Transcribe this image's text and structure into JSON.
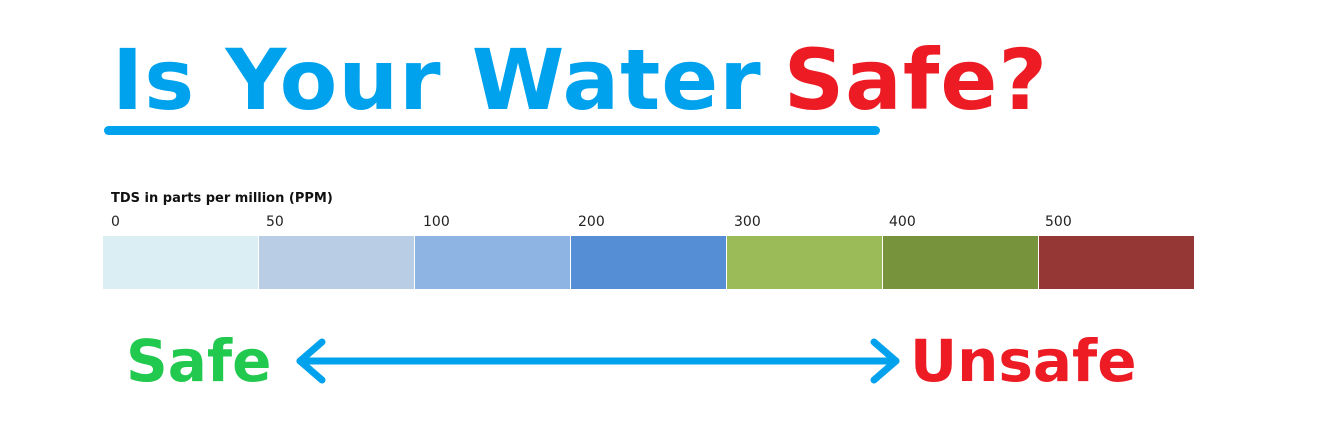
{
  "headline": {
    "part1": "Is Your Water",
    "part2": "Safe?",
    "part1_color": "#00a2ed",
    "part2_color": "#ed1c24",
    "underline_color": "#00a2ed"
  },
  "scale": {
    "caption": "TDS in parts per million (PPM)",
    "ticks": [
      "0",
      "50",
      "100",
      "200",
      "300",
      "400",
      "500"
    ],
    "segment_colors": [
      "#dbeef4",
      "#b9cde5",
      "#8eb4e3",
      "#558ed5",
      "#9bbb59",
      "#77933c",
      "#953735"
    ]
  },
  "range": {
    "safe_label": "Safe",
    "unsafe_label": "Unsafe",
    "safe_color": "#22c94f",
    "unsafe_color": "#ed1c24",
    "arrow_color": "#00a2ed",
    "arrow_icon": "double-headed-arrow-icon"
  }
}
